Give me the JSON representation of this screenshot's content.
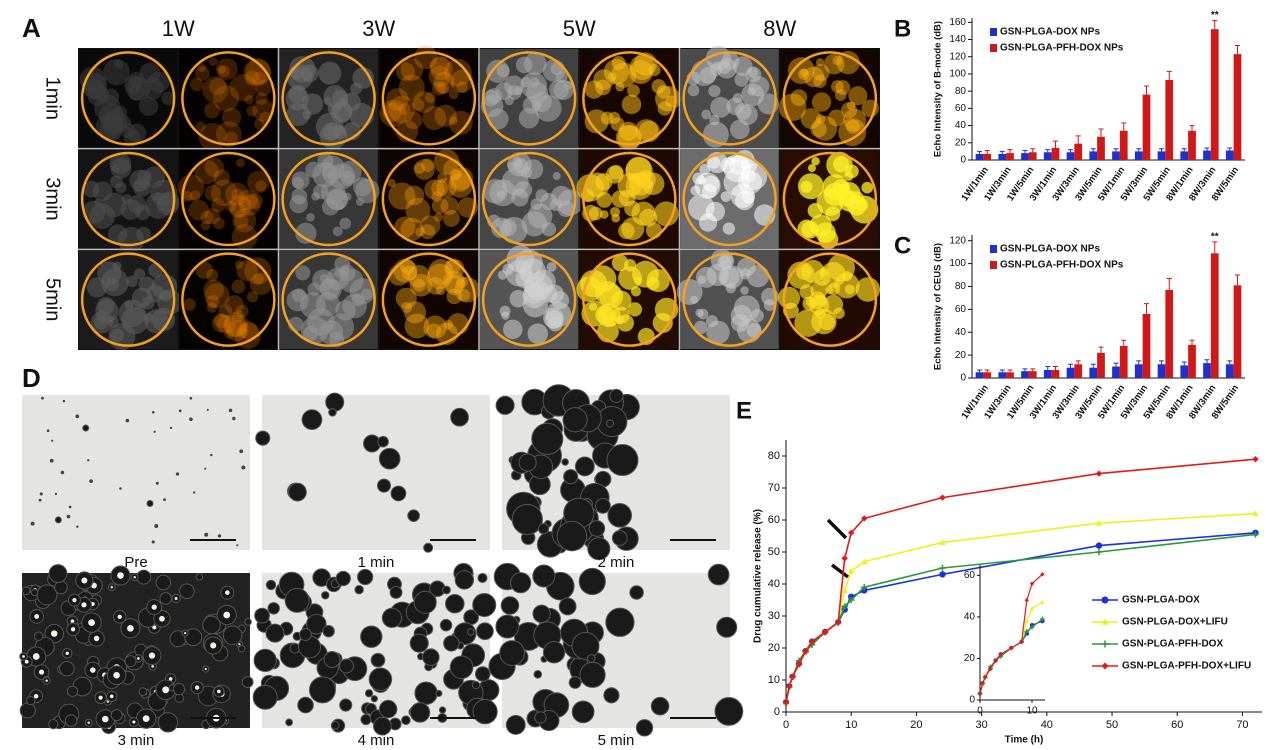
{
  "panels": {
    "A": {
      "label": "A",
      "columns": [
        "1W",
        "3W",
        "5W",
        "8W"
      ],
      "rows": [
        "1min",
        "3min",
        "5min"
      ]
    },
    "D": {
      "label": "D",
      "captions": [
        "Pre",
        "1 min",
        "2 min",
        "3 min",
        "4 min",
        "5 min"
      ]
    }
  },
  "chart_data": [
    {
      "type": "bar",
      "panel_label": "B",
      "ylabel": "Echo Intensity of B-mode (dB)",
      "categories": [
        "1W/1min",
        "1W/3min",
        "1W/5min",
        "3W/1min",
        "3W/3min",
        "3W/5min",
        "5W/1min",
        "5W/3min",
        "5W/5min",
        "8W/1min",
        "8W/3min",
        "8W/5min"
      ],
      "series": [
        {
          "name": "GSN-PLGA-DOX NPs",
          "color": "#1f2fd0",
          "values": [
            7,
            7,
            8,
            9,
            9,
            10,
            10,
            10,
            10,
            10,
            11,
            11
          ],
          "errors": [
            3,
            3,
            3,
            3,
            3,
            3,
            3,
            3,
            3,
            3,
            3,
            3
          ]
        },
        {
          "name": "GSN-PLGA-PFH-DOX NPs",
          "color": "#d01818",
          "values": [
            7,
            8,
            9,
            14,
            19,
            27,
            34,
            76,
            93,
            34,
            152,
            123
          ],
          "errors": [
            4,
            4,
            4,
            8,
            9,
            9,
            9,
            10,
            10,
            6,
            10,
            10
          ]
        }
      ],
      "annotations": [
        {
          "text": "**",
          "x": "8W/3min"
        }
      ],
      "ylim": [
        0,
        165
      ],
      "yticks": [
        0,
        20,
        40,
        60,
        80,
        100,
        120,
        140,
        160
      ]
    },
    {
      "type": "bar",
      "panel_label": "C",
      "ylabel": "Echo Intensity of CEUS (dB)",
      "categories": [
        "1W/1min",
        "1W/3min",
        "1W/5min",
        "3W/1min",
        "3W/3min",
        "3W/5min",
        "5W/1min",
        "5W/3min",
        "5W/5min",
        "8W/1min",
        "8W/3min",
        "8W/5min"
      ],
      "series": [
        {
          "name": "GSN-PLGA-DOX NPs",
          "color": "#1f2fd0",
          "values": [
            5,
            5,
            6,
            7,
            9,
            9,
            10,
            12,
            12,
            11,
            13,
            12
          ],
          "errors": [
            2,
            2,
            2,
            3,
            3,
            3,
            3,
            3,
            3,
            3,
            3,
            3
          ]
        },
        {
          "name": "GSN-PLGA-PFH-DOX NPs",
          "color": "#d01818",
          "values": [
            5,
            5,
            6,
            7,
            12,
            22,
            28,
            56,
            77,
            29,
            109,
            81
          ],
          "errors": [
            2,
            2,
            2,
            3,
            3,
            5,
            5,
            9,
            10,
            4,
            10,
            9
          ]
        }
      ],
      "annotations": [
        {
          "text": "**",
          "x": "8W/3min"
        }
      ],
      "ylim": [
        0,
        125
      ],
      "yticks": [
        0,
        20,
        40,
        60,
        80,
        100,
        120
      ]
    },
    {
      "type": "line",
      "panel_label": "E",
      "xlabel": "Time (h)",
      "ylabel": "Drug cumulative release (%)",
      "x": [
        0,
        0.5,
        1,
        2,
        3,
        4,
        6,
        8,
        9,
        10,
        12,
        24,
        48,
        72
      ],
      "series": [
        {
          "name": "GSN-PLGA-DOX",
          "color": "#1a2ee8",
          "marker": "circle",
          "values": [
            3,
            8,
            11,
            15,
            19,
            22,
            25,
            28,
            32,
            36,
            38,
            43,
            52,
            56
          ]
        },
        {
          "name": "GSN-PLGA-DOX+LIFU",
          "color": "#f2ee1a",
          "marker": "triangle",
          "values": [
            3,
            8,
            11,
            15,
            19,
            22,
            25,
            28,
            38,
            44,
            47,
            53,
            59,
            62
          ]
        },
        {
          "name": "GSN-PLGA-PFH-DOX",
          "color": "#2a9a3a",
          "marker": "plus",
          "values": [
            3,
            8,
            11,
            16,
            19,
            21,
            25,
            28,
            33,
            35,
            39,
            45,
            50,
            55.5
          ]
        },
        {
          "name": "GSN-PLGA-PFH-DOX+LIFU",
          "color": "#e81818",
          "marker": "diamond",
          "values": [
            3,
            8,
            11,
            15,
            19,
            22,
            25,
            28,
            48,
            56,
            60.5,
            67,
            74.5,
            79
          ]
        }
      ],
      "xlim": [
        0,
        73
      ],
      "xticks": [
        0,
        10,
        20,
        30,
        40,
        50,
        60,
        70
      ],
      "ylim": [
        0,
        85
      ],
      "yticks": [
        0,
        10,
        20,
        30,
        40,
        50,
        60,
        70,
        80
      ],
      "inset": {
        "xlim": [
          0,
          12.5
        ],
        "xticks": [
          0,
          10
        ],
        "ylim": [
          0,
          65
        ],
        "yticks": [
          0,
          20,
          40,
          60
        ]
      }
    }
  ]
}
